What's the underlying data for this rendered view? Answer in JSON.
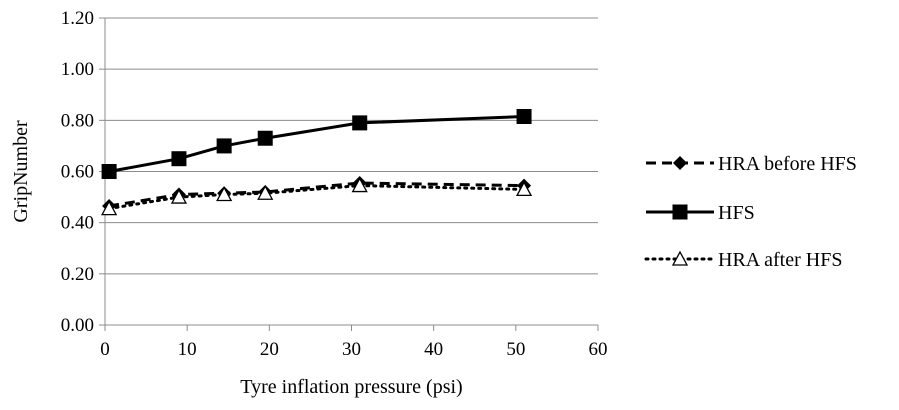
{
  "chart_data": {
    "type": "line",
    "xlabel": "Tyre inflation pressure (psi)",
    "ylabel": "GripNumber",
    "xlim": [
      0,
      60
    ],
    "ylim": [
      0,
      1.2
    ],
    "xticks": [
      "0",
      "10",
      "20",
      "30",
      "40",
      "50",
      "60"
    ],
    "yticks": [
      "0.00",
      "0.20",
      "0.40",
      "0.60",
      "0.80",
      "1.00",
      "1.20"
    ],
    "grid": "horizontal",
    "legend_position": "right",
    "series": [
      {
        "name": "HRA before HFS",
        "marker": "diamond",
        "line": "dashed",
        "x": [
          0.5,
          9,
          14.5,
          19.5,
          31,
          51
        ],
        "y": [
          0.465,
          0.51,
          0.515,
          0.52,
          0.555,
          0.545
        ]
      },
      {
        "name": "HFS",
        "marker": "square",
        "line": "solid",
        "x": [
          0.5,
          9,
          14.5,
          19.5,
          31,
          51
        ],
        "y": [
          0.6,
          0.65,
          0.7,
          0.73,
          0.79,
          0.815
        ]
      },
      {
        "name": "HRA after HFS",
        "marker": "triangle",
        "line": "dotted",
        "x": [
          0.5,
          9,
          14.5,
          19.5,
          31,
          51
        ],
        "y": [
          0.455,
          0.5,
          0.51,
          0.515,
          0.545,
          0.53
        ]
      }
    ]
  }
}
